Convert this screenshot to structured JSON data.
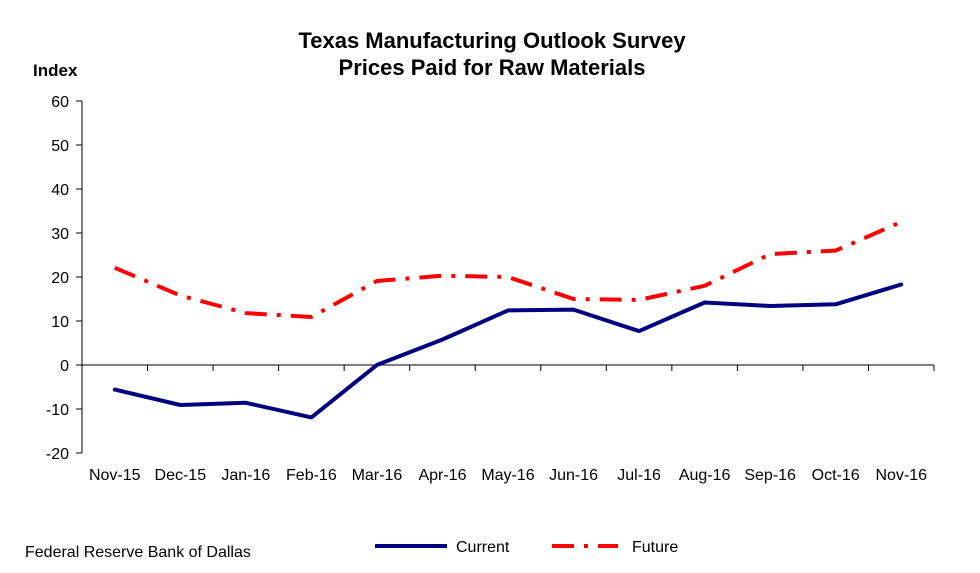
{
  "chart_data": {
    "type": "line",
    "title": "Texas Manufacturing Outlook Survey",
    "subtitle": "Prices Paid for Raw Materials",
    "ylabel": "Index",
    "xlabel": "",
    "ylim": [
      -20,
      60
    ],
    "yticks": [
      -20,
      -10,
      0,
      10,
      20,
      30,
      40,
      50,
      60
    ],
    "categories": [
      "Nov-15",
      "Dec-15",
      "Jan-16",
      "Feb-16",
      "Mar-16",
      "Apr-16",
      "May-16",
      "Jun-16",
      "Jul-16",
      "Aug-16",
      "Sep-16",
      "Oct-16",
      "Nov-16"
    ],
    "series": [
      {
        "name": "Current",
        "color": "#000080",
        "style": "solid",
        "values": [
          -5.6,
          -9.1,
          -8.6,
          -11.9,
          0.0,
          5.8,
          12.4,
          12.6,
          7.7,
          14.2,
          13.4,
          13.8,
          18.3
        ]
      },
      {
        "name": "Future",
        "color": "#ff0000",
        "style": "dash-dot",
        "values": [
          22.1,
          15.8,
          11.8,
          10.9,
          19.1,
          20.3,
          20.0,
          15.0,
          14.8,
          18.0,
          25.2,
          26.0,
          32.5
        ]
      }
    ],
    "legend_position": "bottom-center",
    "grid": false
  },
  "source": "Federal Reserve Bank of Dallas"
}
